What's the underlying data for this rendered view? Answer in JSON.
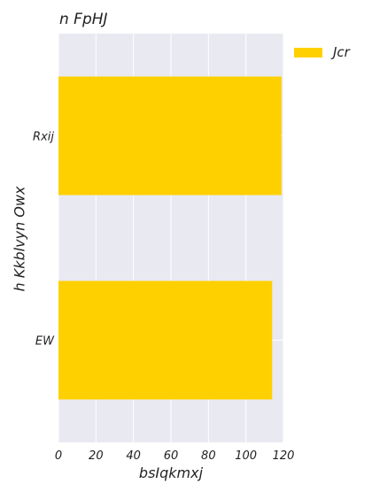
{
  "chart_data": {
    "type": "bar",
    "orientation": "horizontal",
    "title": "n FpHJ",
    "xlabel": "bsIqkmxj",
    "ylabel": "h Kkblvyn  Owx",
    "categories": [
      "Rxij",
      "EW"
    ],
    "series": [
      {
        "name": "Jcr",
        "values": [
          119,
          114
        ],
        "color": "#ffd000"
      }
    ],
    "xlim": [
      0,
      120
    ],
    "xticks": [
      0,
      20,
      40,
      60,
      80,
      100,
      120
    ],
    "grid": true,
    "legend_position": "outside-top-right",
    "background_color": "#e9e9f1"
  }
}
